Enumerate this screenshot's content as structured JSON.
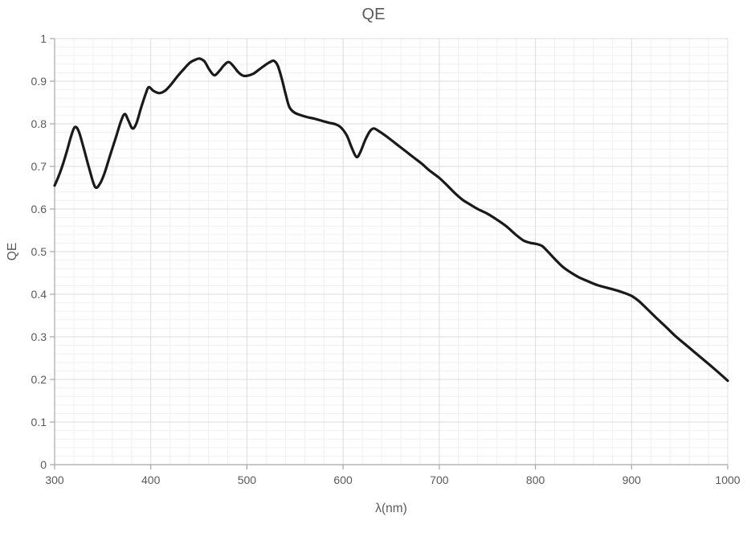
{
  "chart_data": {
    "type": "line",
    "title": "QE",
    "xlabel": "λ(nm)",
    "ylabel": "QE",
    "xlim": [
      300,
      1000
    ],
    "ylim": [
      0,
      1
    ],
    "x_major_step": 100,
    "x_minor_step": 20,
    "y_major_step": 0.1,
    "y_minor_step": 0.02,
    "grid": "major+minor",
    "legend": "none",
    "x_tick_labels": [
      "300",
      "400",
      "500",
      "600",
      "700",
      "800",
      "900",
      "1000"
    ],
    "y_tick_labels": [
      "0",
      "0.1",
      "0.2",
      "0.3",
      "0.4",
      "0.5",
      "0.6",
      "0.7",
      "0.8",
      "0.9",
      "1"
    ],
    "styles": {
      "line_color": "#1a1a1a",
      "line_width": 3.2,
      "axis_color": "#a6a6a6",
      "major_grid_color": "#dcdcdc",
      "minor_grid_color": "#f0f0f0",
      "text_color": "#595959",
      "background": "#ffffff"
    },
    "series": [
      {
        "name": "QE",
        "x": [
          300,
          304,
          308,
          313,
          317,
          321,
          325,
          330,
          336,
          342,
          347,
          352,
          358,
          364,
          369,
          373,
          377,
          381,
          385,
          390,
          395,
          398,
          403,
          409,
          415,
          421,
          428,
          435,
          441,
          447,
          451,
          456,
          461,
          466,
          471,
          476,
          481,
          486,
          491,
          496,
          501,
          507,
          513,
          519,
          524,
          528,
          532,
          536,
          540,
          544,
          549,
          555,
          562,
          570,
          578,
          586,
          592,
          598,
          604,
          609,
          614,
          618,
          623,
          628,
          632,
          637,
          643,
          650,
          658,
          666,
          674,
          682,
          690,
          700,
          708,
          716,
          724,
          731,
          740,
          750,
          760,
          770,
          779,
          787,
          794,
          801,
          807,
          813,
          820,
          828,
          836,
          845,
          855,
          865,
          878,
          890,
          900,
          908,
          916,
          925,
          935,
          945,
          955,
          965,
          975,
          985,
          1000
        ],
        "y": [
          0.655,
          0.676,
          0.701,
          0.738,
          0.77,
          0.792,
          0.783,
          0.745,
          0.695,
          0.652,
          0.659,
          0.685,
          0.728,
          0.77,
          0.806,
          0.823,
          0.806,
          0.789,
          0.801,
          0.838,
          0.872,
          0.886,
          0.877,
          0.872,
          0.878,
          0.892,
          0.912,
          0.93,
          0.944,
          0.951,
          0.953,
          0.946,
          0.927,
          0.914,
          0.923,
          0.937,
          0.945,
          0.935,
          0.921,
          0.913,
          0.913,
          0.918,
          0.928,
          0.938,
          0.945,
          0.948,
          0.937,
          0.908,
          0.872,
          0.84,
          0.827,
          0.821,
          0.816,
          0.812,
          0.807,
          0.802,
          0.799,
          0.791,
          0.772,
          0.744,
          0.722,
          0.734,
          0.762,
          0.783,
          0.789,
          0.783,
          0.774,
          0.762,
          0.748,
          0.734,
          0.72,
          0.706,
          0.69,
          0.673,
          0.656,
          0.638,
          0.622,
          0.612,
          0.6,
          0.589,
          0.575,
          0.559,
          0.541,
          0.527,
          0.521,
          0.518,
          0.513,
          0.5,
          0.483,
          0.465,
          0.452,
          0.44,
          0.43,
          0.421,
          0.413,
          0.405,
          0.396,
          0.383,
          0.366,
          0.346,
          0.325,
          0.303,
          0.284,
          0.265,
          0.246,
          0.227,
          0.197
        ]
      }
    ]
  }
}
